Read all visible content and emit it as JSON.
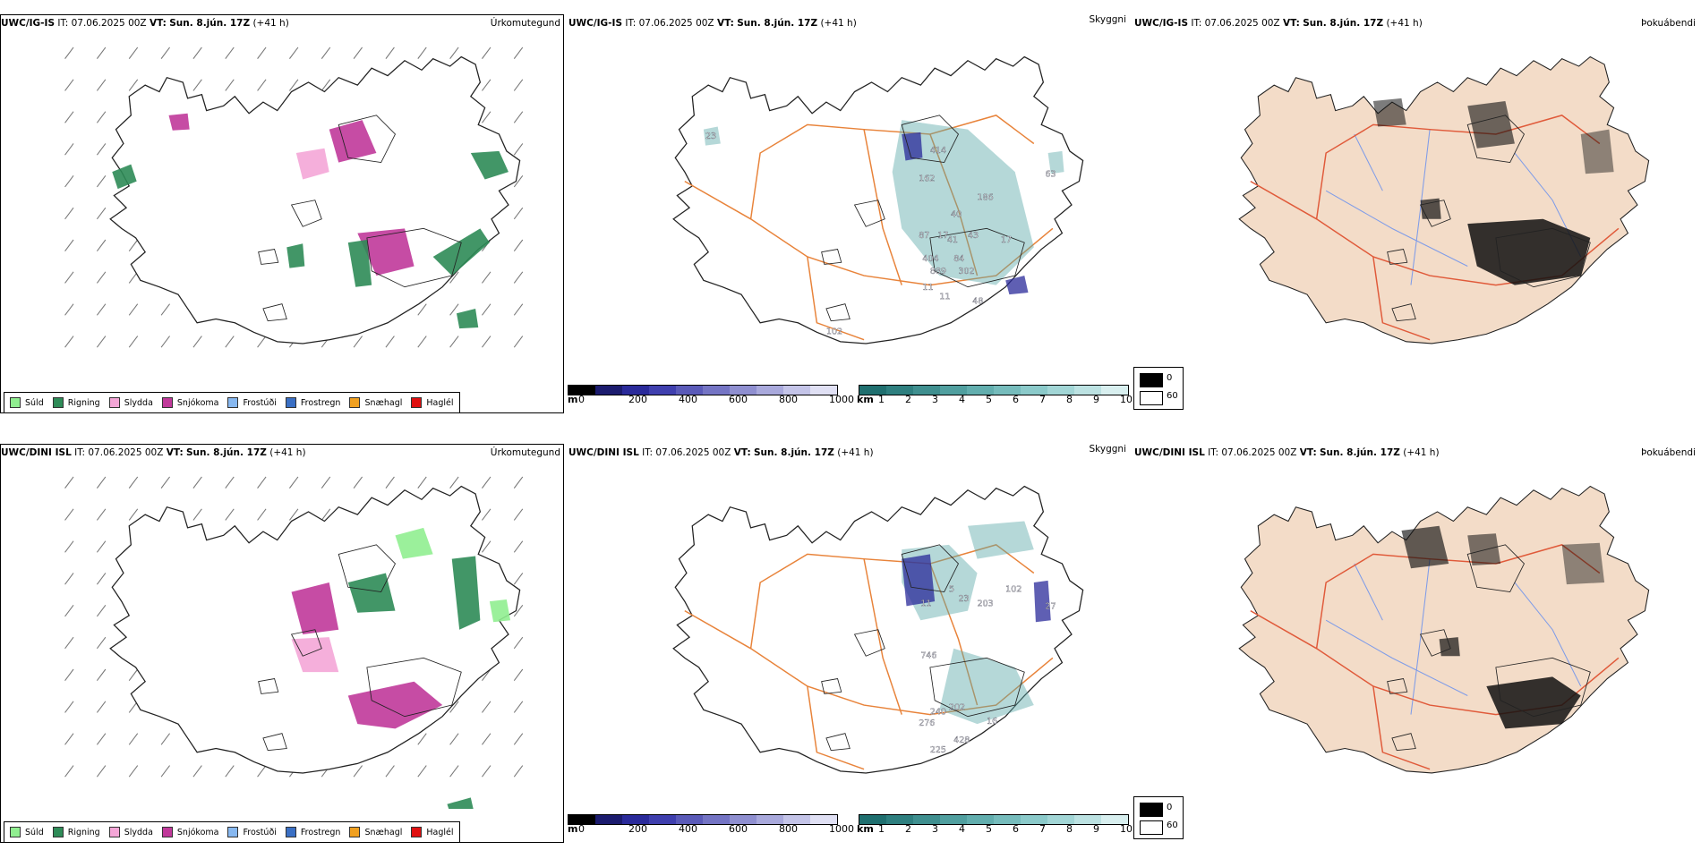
{
  "rows": [
    {
      "panel1": {
        "model": "UWC/IG-IS",
        "it_label": "IT:",
        "it_value": "07.06.2025 00Z",
        "vt_label": "VT:",
        "vt_value": "Sun. 8.jún. 17Z",
        "lead": "(+41 h)",
        "corner": "Úrkomutegund"
      },
      "panel2": {
        "model": "UWC/IG-IS",
        "it_label": "IT:",
        "it_value": "07.06.2025 00Z",
        "vt_label": "VT:",
        "vt_value": "Sun. 8.jún. 17Z",
        "lead": "(+41 h)",
        "corner": "Skyggni",
        "labels": [
          "23",
          "414",
          "162",
          "186",
          "40",
          "87",
          "17",
          "41",
          "43",
          "17",
          "404",
          "84",
          "302",
          "889",
          "11",
          "11",
          "48",
          "102",
          "63"
        ]
      },
      "panel3": {
        "model": "UWC/IG-IS",
        "it_label": "IT:",
        "it_value": "07.06.2025 00Z",
        "vt_label": "VT:",
        "vt_value": "Sun. 8.jún. 17Z",
        "lead": "(+41 h)",
        "corner": "Þokuábendi"
      }
    },
    {
      "panel1": {
        "model": "UWC/DINI ISL",
        "it_label": "IT:",
        "it_value": "07.06.2025 00Z",
        "vt_label": "VT:",
        "vt_value": "Sun. 8.jún. 17Z",
        "lead": "(+41 h)",
        "corner": "Úrkomutegund"
      },
      "panel2": {
        "model": "UWC/DINI ISL",
        "it_label": "IT:",
        "it_value": "07.06.2025 00Z",
        "vt_label": "VT:",
        "vt_value": "Sun. 8.jún. 17Z",
        "lead": "(+41 h)",
        "corner": "Skyggni",
        "labels": [
          "5",
          "11",
          "23",
          "203",
          "102",
          "746",
          "240",
          "202",
          "276",
          "225",
          "428",
          "16",
          "27"
        ]
      },
      "panel3": {
        "model": "UWC/DINI ISL",
        "it_label": "IT:",
        "it_value": "07.06.2025 00Z",
        "vt_label": "VT:",
        "vt_value": "Sun. 8.jún. 17Z",
        "lead": "(+41 h)",
        "corner": "Þokuábendi"
      }
    }
  ],
  "precip_legend": [
    {
      "label": "Súld",
      "color": "#90ee90"
    },
    {
      "label": "Rigning",
      "color": "#2e8b57"
    },
    {
      "label": "Slydda",
      "color": "#f4a6d7"
    },
    {
      "label": "Snjókoma",
      "color": "#c0399a"
    },
    {
      "label": "Frostúði",
      "color": "#87b8f0"
    },
    {
      "label": "Frostregn",
      "color": "#3a6fc4"
    },
    {
      "label": "Snæhagl",
      "color": "#f0a020"
    },
    {
      "label": "Haglél",
      "color": "#e01010"
    }
  ],
  "vis_m_bar": {
    "unit": "m",
    "ticks": [
      "0",
      "200",
      "400",
      "600",
      "800",
      "1000"
    ],
    "colors": [
      "#000000",
      "#1b1b6e",
      "#2a2a9a",
      "#3f3fae",
      "#5a5ab8",
      "#7474c4",
      "#8f8fd0",
      "#a9a9dc",
      "#c4c4e8",
      "#e0e0f4"
    ]
  },
  "vis_km_bar": {
    "unit": "km",
    "ticks": [
      "1",
      "2",
      "3",
      "4",
      "5",
      "6",
      "7",
      "8",
      "9",
      "10"
    ],
    "colors": [
      "#1f6f6f",
      "#2e7f7f",
      "#3f8f8f",
      "#509f9f",
      "#62aeae",
      "#76bcbc",
      "#8bcaca",
      "#a2d6d6",
      "#bce2e2",
      "#d8efef"
    ]
  },
  "fog_legend": {
    "items": [
      {
        "value": "0",
        "color": "#000000"
      },
      {
        "value": "60",
        "color": "#ffffff"
      }
    ]
  },
  "colors": {
    "land_fog": "#f3dcc8",
    "roads": "#e8833a",
    "roads_fog": "#e05a3a",
    "rivers": "#7f9ce8",
    "rain": "#2e8b57",
    "snow": "#c0399a",
    "sleet": "#f4a6d7",
    "drizzle": "#90ee90",
    "vis_teal": "#5aa9a9",
    "vis_blue": "#2a2a9a"
  }
}
